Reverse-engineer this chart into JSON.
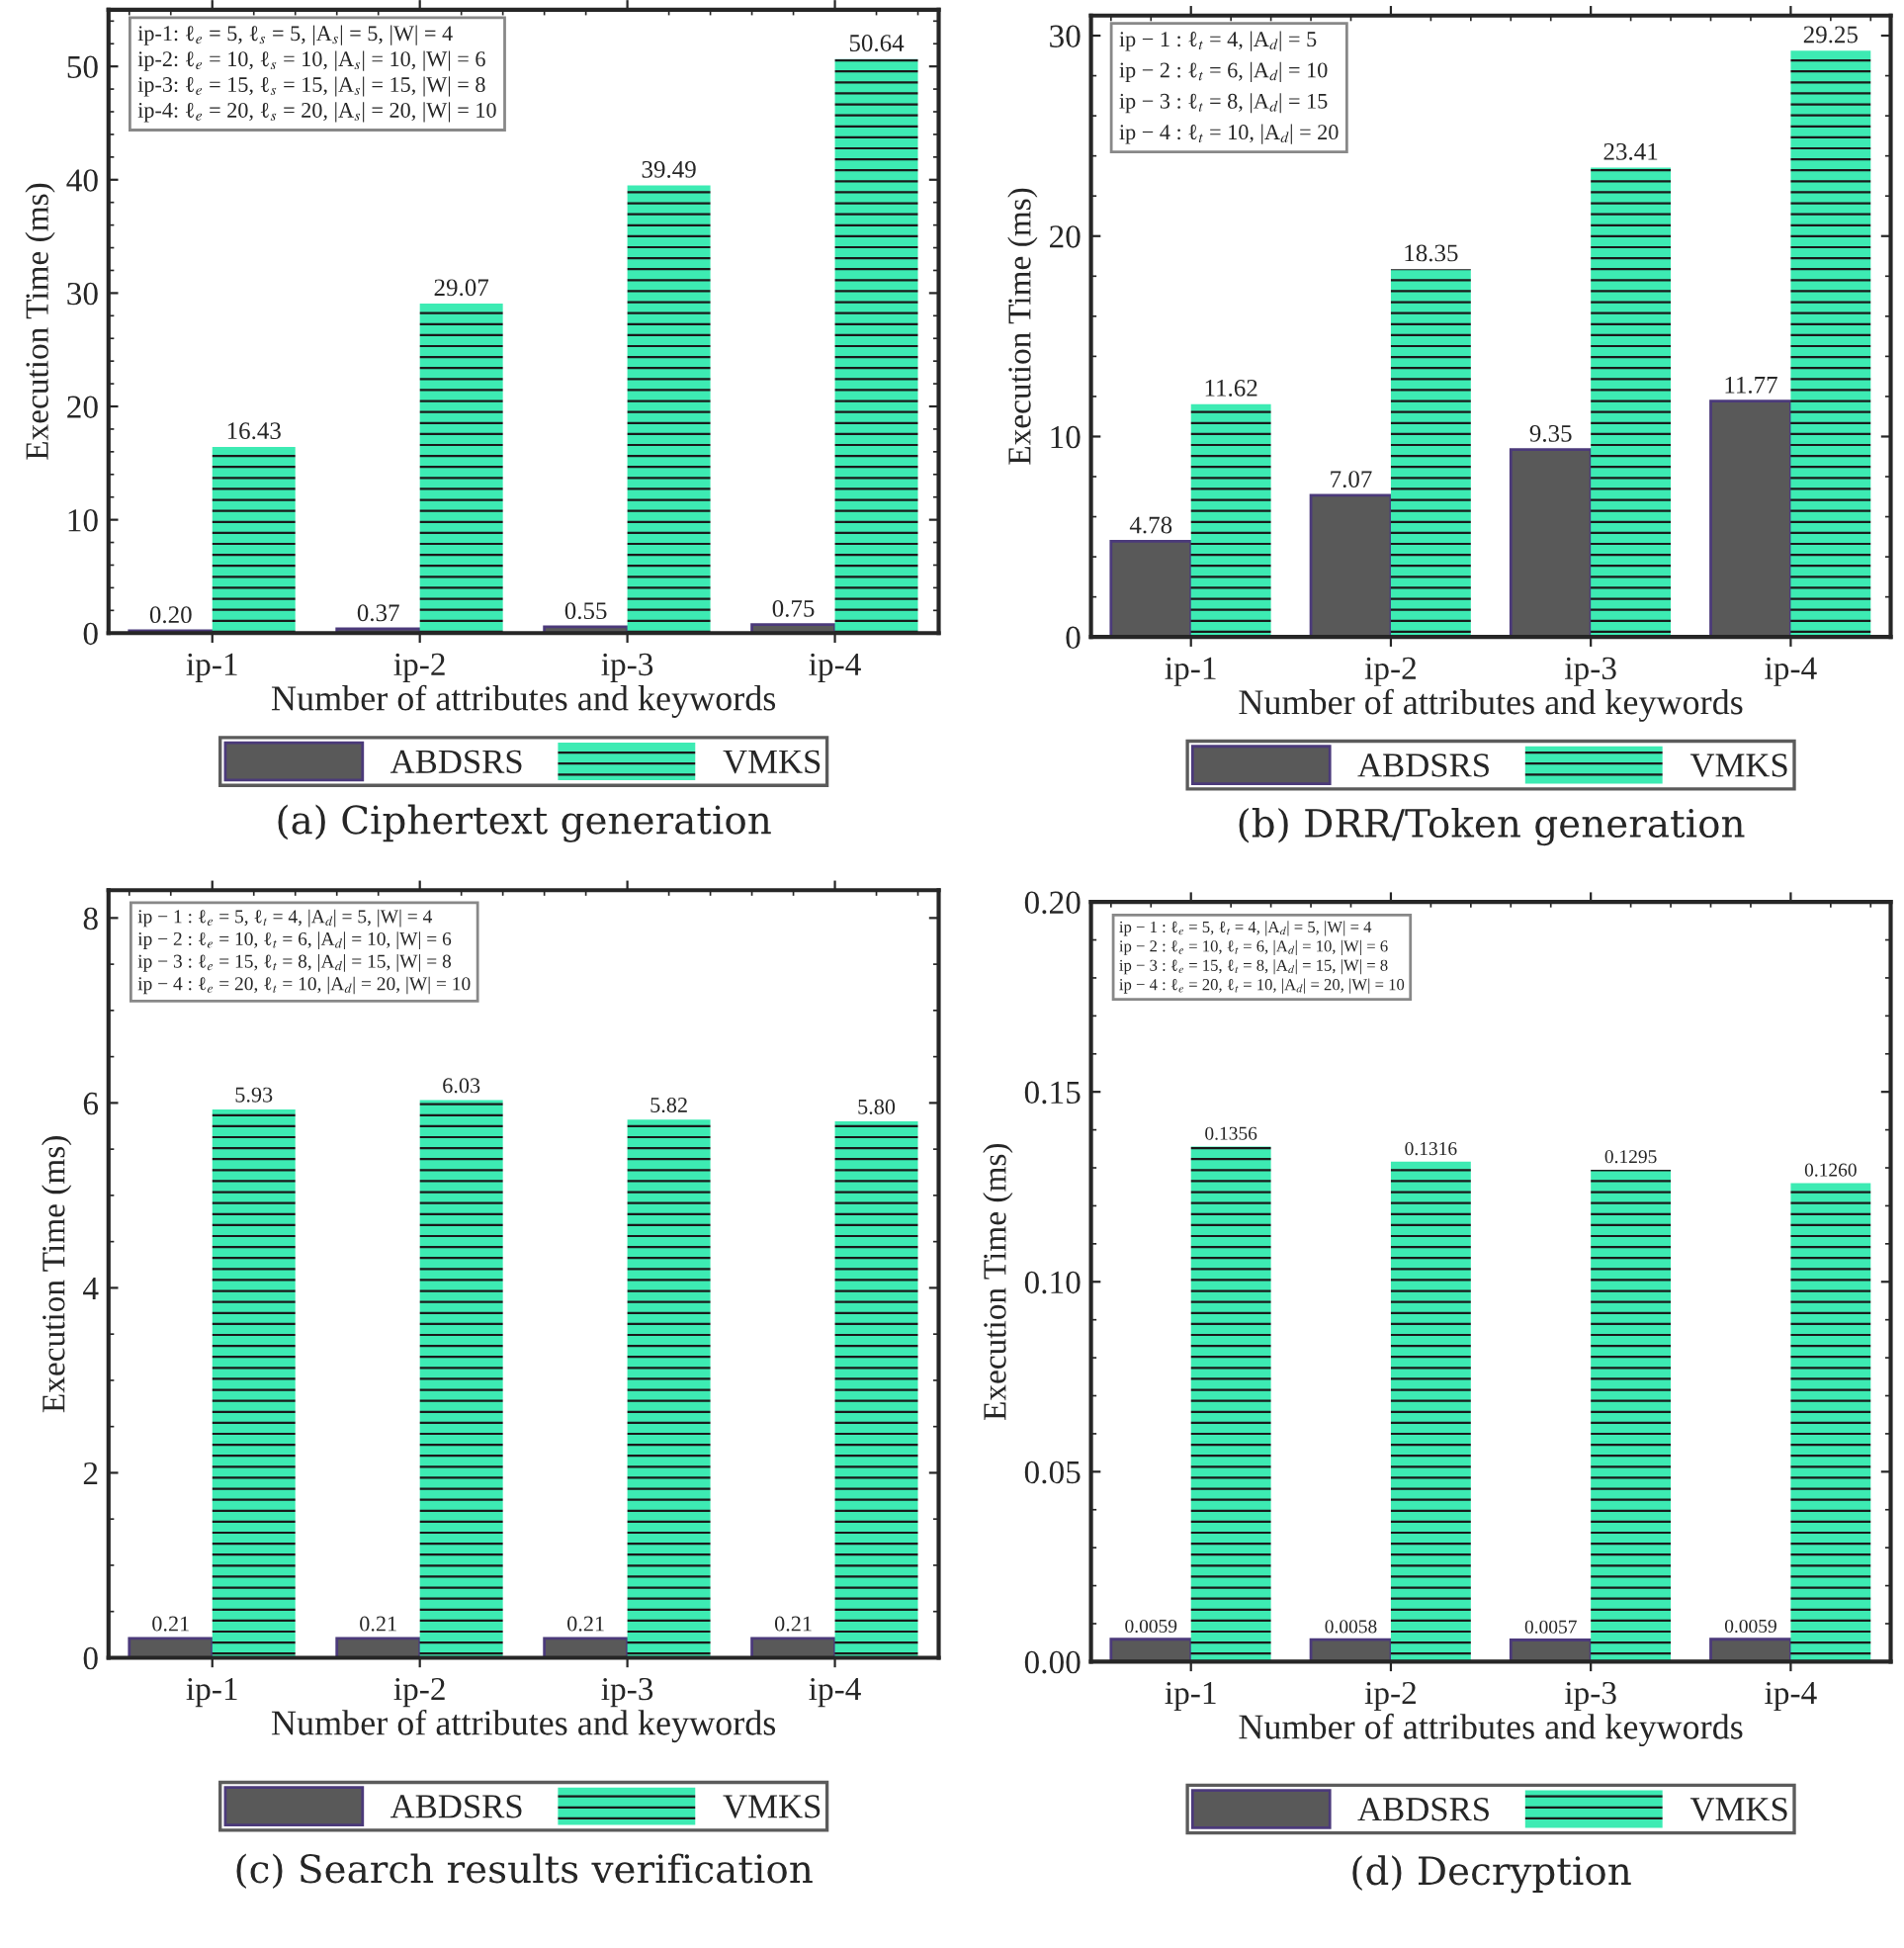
{
  "chart_data": [
    {
      "type": "bar",
      "title": "(a) Ciphertext generation",
      "xlabel": "Number of attributes and keywords",
      "ylabel": "Execution Time (ms)",
      "categories": [
        "ip-1",
        "ip-2",
        "ip-3",
        "ip-4"
      ],
      "ylim": [
        0,
        55
      ],
      "yticks": [
        0,
        10,
        20,
        30,
        40,
        50
      ],
      "legend": "bottom",
      "grid": false,
      "annotations": [
        "ip-1: ℓ$_{e}$ = 5, ℓ$_{s}$ = 5, |A$_{s}$| = 5, |W| = 4",
        "ip-2: ℓ$_{e}$ = 10, ℓ$_{s}$ = 10, |A$_{s}$| = 10, |W| = 6",
        "ip-3: ℓ$_{e}$ = 15, ℓ$_{s}$ = 15, |A$_{s}$| = 15, |W| = 8",
        "ip-4: ℓ$_{e}$ = 20, ℓ$_{s}$ = 20, |A$_{s}$| = 20, |W| = 10"
      ],
      "series": [
        {
          "name": "ABDSRS",
          "color": "#595959",
          "values": [
            0.2,
            0.37,
            0.55,
            0.75
          ],
          "value_labels": [
            "0.20",
            "0.37",
            "0.55",
            "0.75"
          ]
        },
        {
          "name": "VMKS",
          "color": "#3debb3",
          "values": [
            16.43,
            29.07,
            39.49,
            50.64
          ],
          "value_labels": [
            "16.43",
            "29.07",
            "39.49",
            "50.64"
          ]
        }
      ]
    },
    {
      "type": "bar",
      "title": "(b) DRR/Token generation",
      "xlabel": "Number of attributes and keywords",
      "ylabel": "Execution Time (ms)",
      "categories": [
        "ip-1",
        "ip-2",
        "ip-3",
        "ip-4"
      ],
      "ylim": [
        0,
        31
      ],
      "yticks": [
        0,
        10,
        20,
        30
      ],
      "legend": "bottom",
      "grid": false,
      "annotations": [
        "ip − 1 : ℓ$_{t}$ = 4, |A$_{d}$| = 5",
        "ip − 2 : ℓ$_{t}$ = 6, |A$_{d}$| = 10",
        "ip − 3 : ℓ$_{t}$ = 8, |A$_{d}$| = 15",
        "ip − 4 : ℓ$_{t}$ = 10, |A$_{d}$| = 20"
      ],
      "series": [
        {
          "name": "ABDSRS",
          "color": "#595959",
          "values": [
            4.78,
            7.07,
            9.35,
            11.77
          ],
          "value_labels": [
            "4.78",
            "7.07",
            "9.35",
            "11.77"
          ]
        },
        {
          "name": "VMKS",
          "color": "#3debb3",
          "values": [
            11.62,
            18.35,
            23.41,
            29.25
          ],
          "value_labels": [
            "11.62",
            "18.35",
            "23.41",
            "29.25"
          ]
        }
      ]
    },
    {
      "type": "bar",
      "title": "(c) Search results verification",
      "xlabel": "Number of attributes and keywords",
      "ylabel": "Execution Time (ms)",
      "categories": [
        "ip-1",
        "ip-2",
        "ip-3",
        "ip-4"
      ],
      "ylim": [
        0,
        8.3
      ],
      "yticks": [
        0,
        2,
        4,
        6,
        8
      ],
      "legend": "bottom",
      "grid": false,
      "annotations": [
        "ip − 1 : ℓ$_{e}$ = 5, ℓ$_{t}$ = 4, |A$_{d}$| = 5, |W| = 4",
        "ip − 2 : ℓ$_{e}$ = 10, ℓ$_{t}$ = 6, |A$_{d}$| = 10, |W| = 6",
        "ip − 3 : ℓ$_{e}$ = 15, ℓ$_{t}$ = 8, |A$_{d}$| = 15, |W| = 8",
        "ip − 4 : ℓ$_{e}$ = 20, ℓ$_{t}$ = 10, |A$_{d}$| = 20, |W| = 10"
      ],
      "series": [
        {
          "name": "ABDSRS",
          "color": "#595959",
          "values": [
            0.21,
            0.21,
            0.21,
            0.21
          ],
          "value_labels": [
            "0.21",
            "0.21",
            "0.21",
            "0.21"
          ]
        },
        {
          "name": "VMKS",
          "color": "#3debb3",
          "values": [
            5.93,
            6.03,
            5.82,
            5.8
          ],
          "value_labels": [
            "5.93",
            "6.03",
            "5.82",
            "5.80"
          ]
        }
      ]
    },
    {
      "type": "bar",
      "title": "(d) Decryption",
      "xlabel": "Number of attributes and keywords",
      "ylabel": "Execution Time (ms)",
      "categories": [
        "ip-1",
        "ip-2",
        "ip-3",
        "ip-4"
      ],
      "ylim": [
        0,
        0.2
      ],
      "yticks": [
        {
          "value": 0,
          "label": "0.00"
        },
        {
          "value": 0.05,
          "label": "0.05"
        },
        {
          "value": 0.1,
          "label": "0.10"
        },
        {
          "value": 0.15,
          "label": "0.15"
        },
        {
          "value": 0.2,
          "label": "0.20"
        }
      ],
      "legend": "bottom",
      "grid": false,
      "annotations": [
        "ip − 1 : ℓ$_{e}$ = 5, ℓ$_{t}$ = 4, |A$_{d}$| = 5, |W| = 4",
        "ip − 2 : ℓ$_{e}$ = 10, ℓ$_{t}$ = 6, |A$_{d}$| = 10, |W| = 6",
        "ip − 3 : ℓ$_{e}$ = 15, ℓ$_{t}$ = 8, |A$_{d}$| = 15, |W| = 8",
        "ip − 4 : ℓ$_{e}$ = 20, ℓ$_{t}$ = 10, |A$_{d}$| = 20, |W| = 10"
      ],
      "series": [
        {
          "name": "ABDSRS",
          "color": "#595959",
          "values": [
            0.0059,
            0.0058,
            0.0057,
            0.0059
          ],
          "value_labels": [
            "0.0059",
            "0.0058",
            "0.0057",
            "0.0059"
          ]
        },
        {
          "name": "VMKS",
          "color": "#3debb3",
          "values": [
            0.1356,
            0.1316,
            0.1295,
            0.126
          ],
          "value_labels": [
            "0.1356",
            "0.1316",
            "0.1295",
            "0.1260"
          ]
        }
      ]
    }
  ]
}
